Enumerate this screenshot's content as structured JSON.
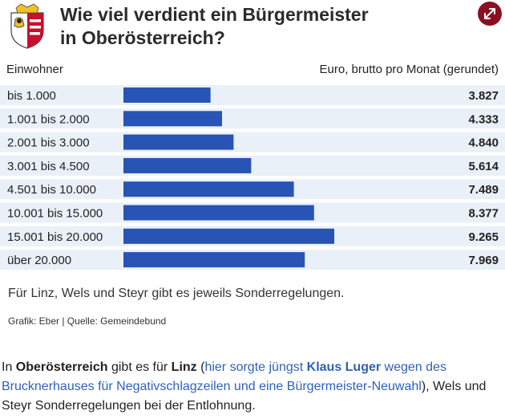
{
  "title": {
    "line1": "Wie viel verdient ein Bürgermeister",
    "line2": "in Oberösterreich?"
  },
  "columns": {
    "left": "Einwohner",
    "right": "Euro, brutto pro Monat (gerundet)"
  },
  "chart_data": {
    "type": "bar",
    "orientation": "horizontal",
    "categories": [
      "bis 1.000",
      "1.001 bis 2.000",
      "2.001 bis 3.000",
      "3.001 bis 4.500",
      "4.501 bis 10.000",
      "10.001 bis 15.000",
      "15.001 bis 20.000",
      "über 20.000"
    ],
    "values": [
      3827,
      4333,
      4840,
      5614,
      7489,
      8377,
      9265,
      7969
    ],
    "value_labels": [
      "3.827",
      "4.333",
      "4.840",
      "5.614",
      "7.489",
      "8.377",
      "9.265",
      "7.969"
    ],
    "xlim": [
      0,
      9265
    ],
    "grid": false,
    "bar_color": "#2754b5",
    "row_band_color": "#eaf0f8"
  },
  "note": "Für Linz, Wels und Steyr gibt es jeweils Sonderregelungen.",
  "source": "Grafik: Eber | Quelle: Gemeindebund",
  "article": {
    "p1": "In ",
    "bold1": "Oberösterreich",
    "p2": " gibt es für ",
    "bold2": "Linz",
    "p3": " (",
    "link1": "hier sorgte jüngst ",
    "link_bold": "Klaus Luger",
    "link2": " wegen des Brucknerhauses für Negativschlagzeilen und eine Bürgermeister-Neuwahl",
    "p4": "), Wels und Steyr Sonderregelungen bei der Entlohnung."
  },
  "icons": {
    "crest": "coat-of-arms-icon",
    "expand": "expand-icon"
  },
  "colors": {
    "accent": "#8a1020",
    "link": "#3061b8"
  }
}
